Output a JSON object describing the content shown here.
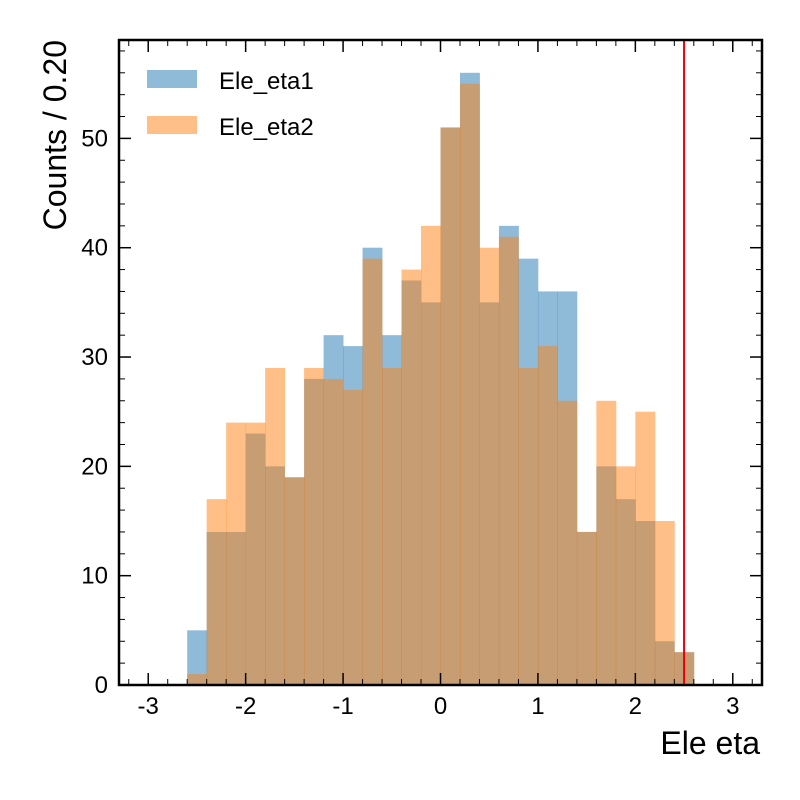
{
  "chart_data": {
    "type": "bar",
    "bin_width": 0.2,
    "bin_edges_start": -2.6,
    "bin_edges_end": 2.6,
    "xlabel": "Ele eta",
    "ylabel": "Counts / 0.20",
    "xlim": [
      -3.3,
      3.3
    ],
    "ylim": [
      0,
      59
    ],
    "xticks": [
      -3,
      -2,
      -1,
      0,
      1,
      2,
      3
    ],
    "yticks": [
      0,
      10,
      20,
      30,
      40,
      50
    ],
    "legend_position": "top-left",
    "series": [
      {
        "name": "Ele_eta1",
        "color": "#1f77b4",
        "values": [
          5,
          14,
          14,
          23,
          20,
          19,
          28,
          32,
          31,
          40,
          32,
          37,
          35,
          51,
          56,
          35,
          42,
          39,
          36,
          36,
          14,
          20,
          17,
          15,
          4,
          3
        ]
      },
      {
        "name": "Ele_eta2",
        "color": "#ff7f0e",
        "values": [
          1,
          17,
          24,
          24,
          29,
          19,
          29,
          28,
          27,
          39,
          29,
          38,
          42,
          51,
          55,
          40,
          41,
          29,
          31,
          26,
          14,
          26,
          20,
          25,
          15,
          3
        ]
      }
    ],
    "reference_line": {
      "x": 2.5,
      "color": "#e8000b"
    }
  }
}
